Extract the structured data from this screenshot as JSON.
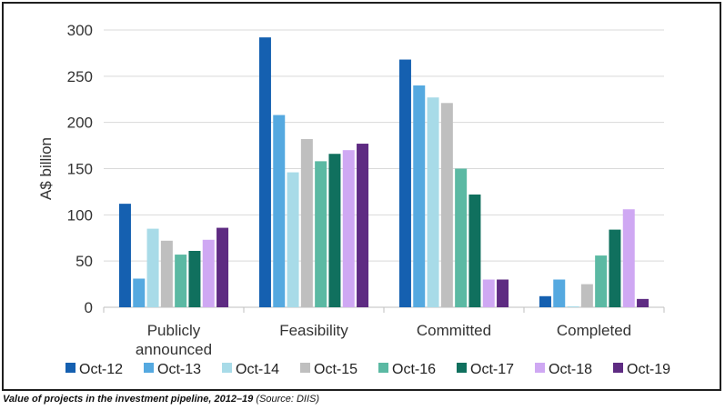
{
  "caption": {
    "title": "Value of projects in the investment pipeline, 2012–19",
    "source": " (Source: DIIS)"
  },
  "chart_data": {
    "type": "bar",
    "ylabel": "A$ billion",
    "xlabel": "",
    "ylim": [
      0,
      300
    ],
    "yticks": [
      0,
      50,
      100,
      150,
      200,
      250,
      300
    ],
    "grid": true,
    "legend_position": "bottom",
    "categories": [
      [
        "Publicly",
        "announced"
      ],
      [
        "Feasibility"
      ],
      [
        "Committed"
      ],
      [
        "Completed"
      ]
    ],
    "series": [
      {
        "name": "Oct-12",
        "color": "#1560b0",
        "values": [
          112,
          292,
          268,
          12
        ]
      },
      {
        "name": "Oct-13",
        "color": "#55a9e0",
        "values": [
          31,
          208,
          240,
          30
        ]
      },
      {
        "name": "Oct-14",
        "color": "#a8dbe8",
        "values": [
          85,
          146,
          227,
          1
        ]
      },
      {
        "name": "Oct-15",
        "color": "#bfbfbf",
        "values": [
          72,
          182,
          221,
          25
        ]
      },
      {
        "name": "Oct-16",
        "color": "#5bb9a3",
        "values": [
          57,
          158,
          150,
          56
        ]
      },
      {
        "name": "Oct-17",
        "color": "#10705e",
        "values": [
          61,
          166,
          122,
          84
        ]
      },
      {
        "name": "Oct-18",
        "color": "#cfa8f3",
        "values": [
          73,
          170,
          30,
          106
        ]
      },
      {
        "name": "Oct-19",
        "color": "#5e2b82",
        "values": [
          86,
          177,
          30,
          9
        ]
      }
    ]
  }
}
